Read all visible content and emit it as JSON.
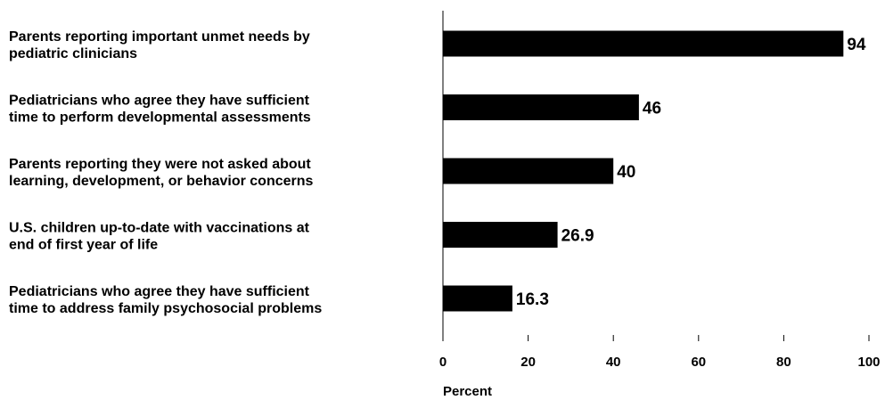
{
  "chart_data": {
    "type": "bar",
    "orientation": "horizontal",
    "categories": [
      [
        "Parents reporting important unmet needs by",
        "pediatric clinicians"
      ],
      [
        "Pediatricians who agree they have sufficient",
        "time to perform developmental assessments"
      ],
      [
        "Parents reporting they were not asked about",
        "learning, development, or behavior concerns"
      ],
      [
        "U.S. children up-to-date with vaccinations at",
        "end of first year of life"
      ],
      [
        "Pediatricians who agree they have sufficient",
        "time to address family psychosocial problems"
      ]
    ],
    "values": [
      94,
      46,
      40,
      26.9,
      16.3
    ],
    "data_labels": [
      "94",
      "46",
      "40",
      "26.9",
      "16.3"
    ],
    "xlabel": "Percent",
    "xlim": [
      0,
      100
    ],
    "xticks": [
      0,
      20,
      40,
      60,
      80,
      100
    ],
    "bar_color": "#000000",
    "grid": false,
    "legend": "none"
  }
}
